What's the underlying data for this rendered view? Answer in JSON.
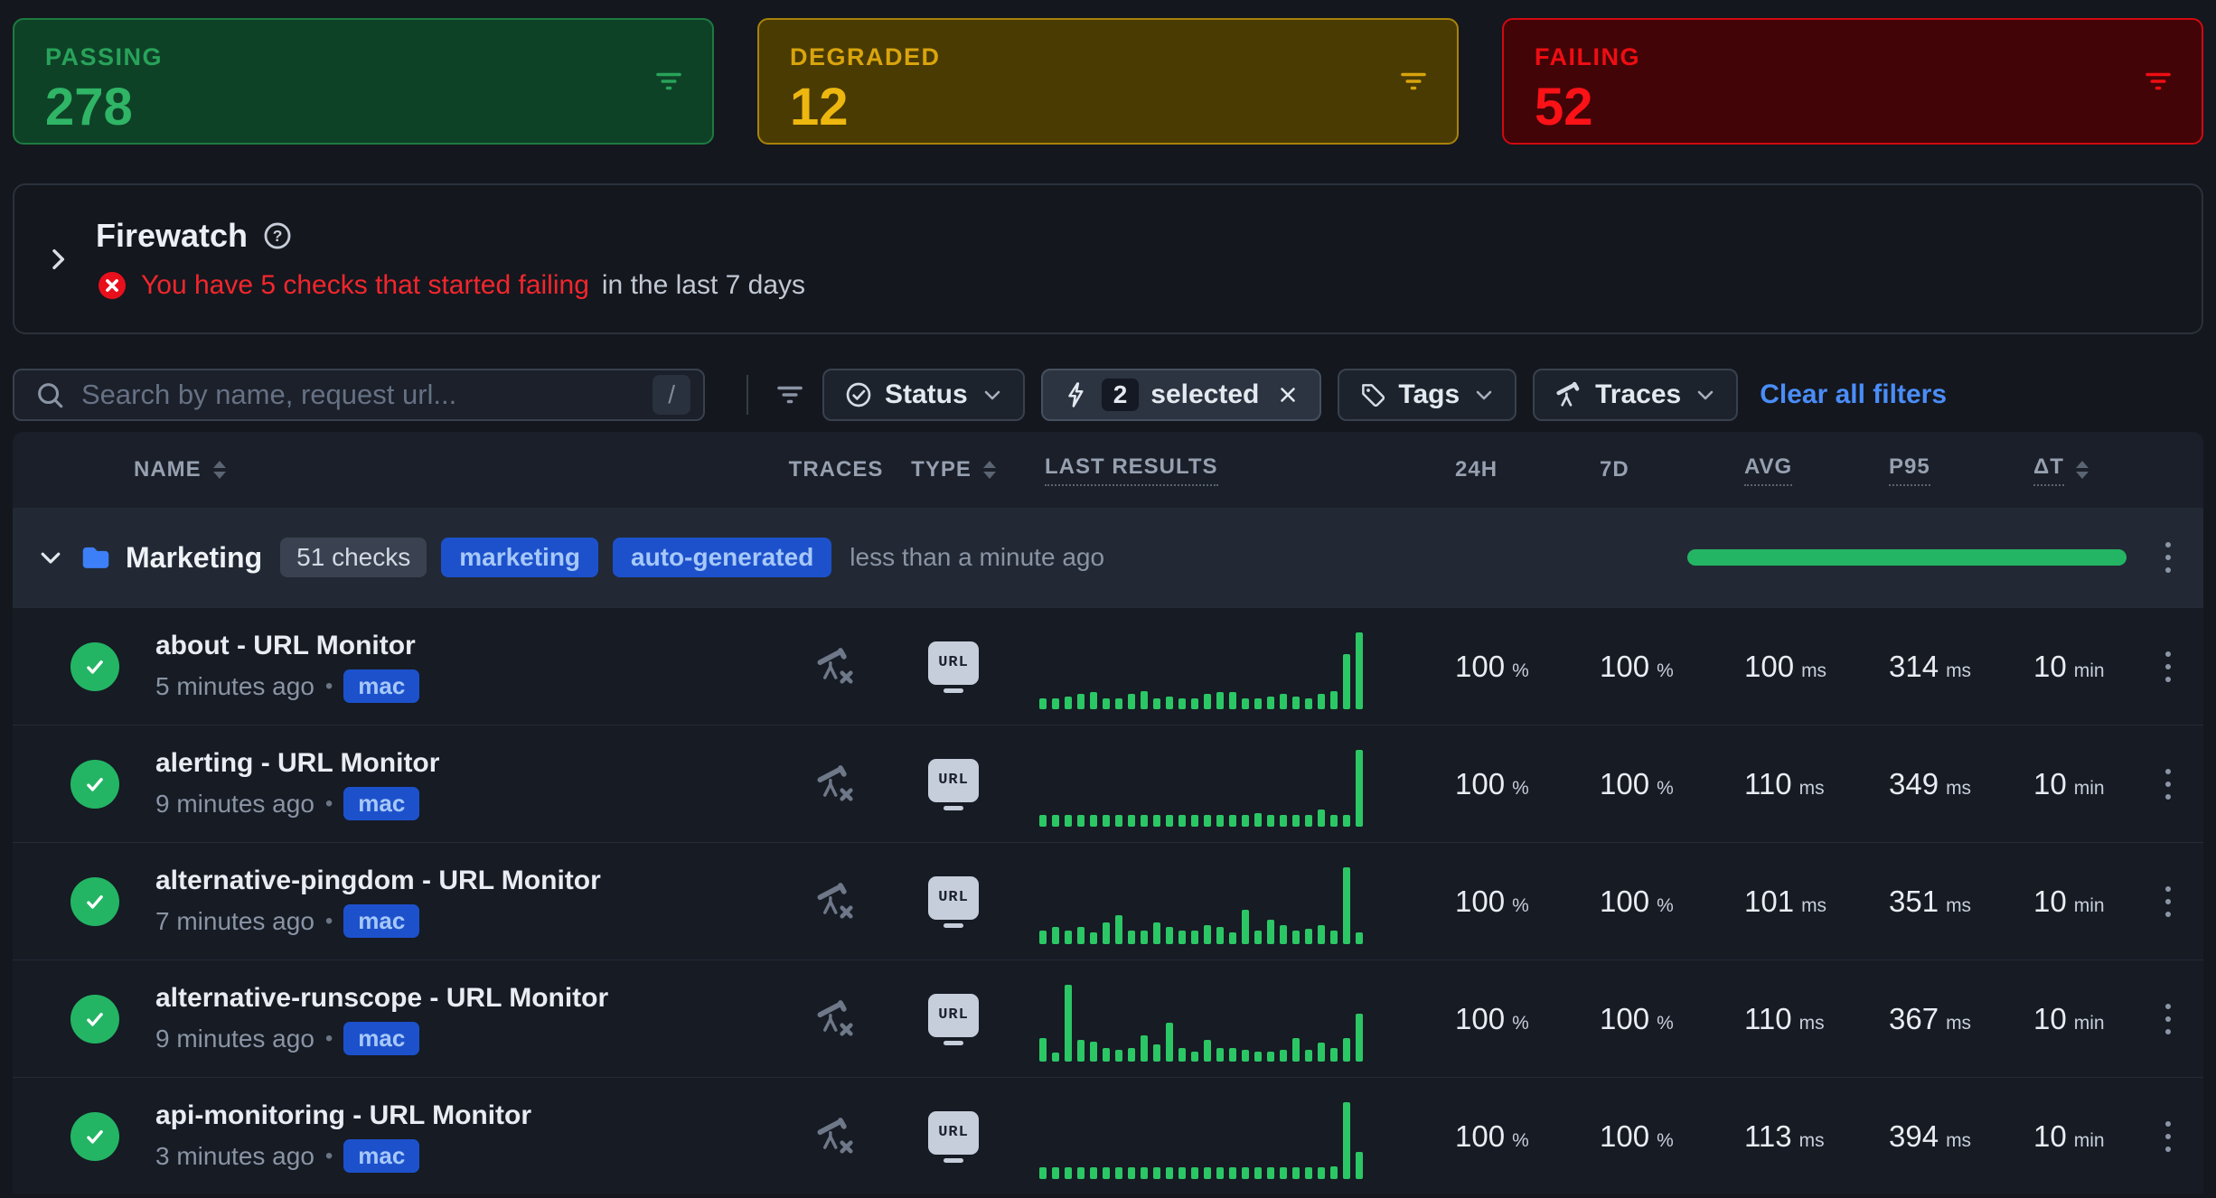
{
  "colors": {
    "page_bg": "#14171E",
    "panel_border": "#2A313C",
    "green": "#23B564",
    "bar_green": "#2BC765",
    "link_blue": "#4A8DF8",
    "alert_red": "#F3262C",
    "badge_blue_bg": "#1D51CC",
    "badge_blue_text": "#A6C8F8"
  },
  "cards": [
    {
      "label": "PASSING",
      "value": "278",
      "bg": "#0E4227",
      "border": "#1E7A41",
      "label_color": "#28A35A",
      "value_color": "#2FB565"
    },
    {
      "label": "DEGRADED",
      "value": "12",
      "bg": "#4A3B03",
      "border": "#A8830A",
      "label_color": "#D9A40D",
      "value_color": "#EDB70F"
    },
    {
      "label": "FAILING",
      "value": "52",
      "bg": "#420407",
      "border": "#D00A10",
      "label_color": "#EE0E13",
      "value_color": "#FB1217"
    }
  ],
  "firewatch": {
    "title": "Firewatch",
    "alert": "You have 5 checks that started failing",
    "alert_suffix": "in the last 7 days"
  },
  "toolbar": {
    "search_placeholder": "Search by name, request url...",
    "search_shortcut": "/",
    "status_label": "Status",
    "selected_count": "2",
    "selected_label": "selected",
    "tags_label": "Tags",
    "traces_label": "Traces",
    "clear_label": "Clear all filters"
  },
  "table": {
    "headers": {
      "name": "NAME",
      "traces": "TRACES",
      "type": "TYPE",
      "last_results": "LAST RESULTS",
      "h24": "24H",
      "d7": "7D",
      "avg": "AVG",
      "p95": "P95",
      "dt": "ΔT"
    },
    "group": {
      "name": "Marketing",
      "checks": "51 checks",
      "tags": [
        "marketing",
        "auto-generated"
      ],
      "updated": "less than a minute ago"
    },
    "rows": [
      {
        "name": "about - URL Monitor",
        "time": "5 minutes ago",
        "tag": "mac",
        "type": "URL",
        "h24": "100",
        "h24_unit": "%",
        "d7": "100",
        "d7_unit": "%",
        "avg": "100",
        "avg_unit": "ms",
        "p95": "314",
        "p95_unit": "ms",
        "dt": "10",
        "dt_unit": "min",
        "bars": [
          0.14,
          0.14,
          0.17,
          0.2,
          0.22,
          0.14,
          0.14,
          0.2,
          0.24,
          0.14,
          0.17,
          0.14,
          0.14,
          0.2,
          0.22,
          0.22,
          0.14,
          0.14,
          0.17,
          0.2,
          0.17,
          0.14,
          0.2,
          0.24,
          0.72,
          1.0
        ]
      },
      {
        "name": "alerting - URL Monitor",
        "time": "9 minutes ago",
        "tag": "mac",
        "type": "URL",
        "h24": "100",
        "h24_unit": "%",
        "d7": "100",
        "d7_unit": "%",
        "avg": "110",
        "avg_unit": "ms",
        "p95": "349",
        "p95_unit": "ms",
        "dt": "10",
        "dt_unit": "min",
        "bars": [
          0.15,
          0.15,
          0.15,
          0.15,
          0.15,
          0.15,
          0.15,
          0.15,
          0.15,
          0.15,
          0.15,
          0.15,
          0.15,
          0.15,
          0.15,
          0.15,
          0.15,
          0.18,
          0.15,
          0.15,
          0.15,
          0.15,
          0.22,
          0.15,
          0.15,
          1.0
        ]
      },
      {
        "name": "alternative-pingdom - URL Monitor",
        "time": "7 minutes ago",
        "tag": "mac",
        "type": "URL",
        "h24": "100",
        "h24_unit": "%",
        "d7": "100",
        "d7_unit": "%",
        "avg": "101",
        "avg_unit": "ms",
        "p95": "351",
        "p95_unit": "ms",
        "dt": "10",
        "dt_unit": "min",
        "bars": [
          0.18,
          0.22,
          0.18,
          0.22,
          0.15,
          0.28,
          0.38,
          0.18,
          0.18,
          0.28,
          0.22,
          0.18,
          0.18,
          0.25,
          0.22,
          0.15,
          0.45,
          0.18,
          0.32,
          0.25,
          0.18,
          0.2,
          0.25,
          0.18,
          1.0,
          0.15
        ]
      },
      {
        "name": "alternative-runscope - URL Monitor",
        "time": "9 minutes ago",
        "tag": "mac",
        "type": "URL",
        "h24": "100",
        "h24_unit": "%",
        "d7": "100",
        "d7_unit": "%",
        "avg": "110",
        "avg_unit": "ms",
        "p95": "367",
        "p95_unit": "ms",
        "dt": "10",
        "dt_unit": "min",
        "bars": [
          0.3,
          0.12,
          1.0,
          0.28,
          0.26,
          0.18,
          0.15,
          0.18,
          0.34,
          0.22,
          0.5,
          0.18,
          0.13,
          0.28,
          0.18,
          0.18,
          0.15,
          0.13,
          0.13,
          0.15,
          0.3,
          0.15,
          0.25,
          0.18,
          0.3,
          0.62
        ]
      },
      {
        "name": "api-monitoring - URL Monitor",
        "time": "3 minutes ago",
        "tag": "mac",
        "type": "URL",
        "h24": "100",
        "h24_unit": "%",
        "d7": "100",
        "d7_unit": "%",
        "avg": "113",
        "avg_unit": "ms",
        "p95": "394",
        "p95_unit": "ms",
        "dt": "10",
        "dt_unit": "min",
        "bars": [
          0.15,
          0.15,
          0.15,
          0.15,
          0.15,
          0.15,
          0.15,
          0.15,
          0.15,
          0.15,
          0.15,
          0.15,
          0.15,
          0.15,
          0.15,
          0.15,
          0.15,
          0.15,
          0.15,
          0.15,
          0.15,
          0.15,
          0.15,
          0.17,
          1.0,
          0.35
        ]
      }
    ]
  }
}
